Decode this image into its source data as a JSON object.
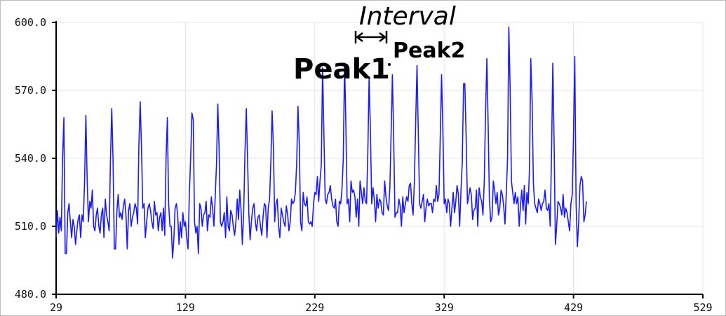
{
  "chart_data": {
    "type": "line",
    "title": "",
    "xlabel": "",
    "ylabel": "",
    "xlim": [
      29,
      529
    ],
    "ylim": [
      480,
      600
    ],
    "x_ticks": [
      "29",
      "129",
      "229",
      "329",
      "429",
      "529"
    ],
    "y_ticks": [
      "600.0",
      "570.0",
      "540.0",
      "510.0",
      "480.0"
    ],
    "grid": true,
    "series": [
      {
        "color": "#1a1aff",
        "x_start": 29,
        "x_step": 1,
        "values": [
          505,
          517,
          507,
          514,
          508,
          540,
          558,
          498,
          498,
          516,
          520,
          512,
          505,
          513,
          510,
          502,
          508,
          513,
          515,
          505,
          515,
          512,
          530,
          559,
          530,
          512,
          521,
          518,
          526,
          510,
          508,
          515,
          518,
          510,
          507,
          515,
          518,
          505,
          522,
          515,
          512,
          508,
          538,
          562,
          540,
          500,
          500,
          517,
          524,
          514,
          516,
          513,
          519,
          522,
          515,
          500,
          517,
          520,
          510,
          514,
          516,
          520,
          518,
          511,
          546,
          565,
          545,
          518,
          520,
          505,
          512,
          518,
          520,
          517,
          512,
          509,
          521,
          515,
          516,
          508,
          514,
          516,
          508,
          518,
          506,
          540,
          558,
          520,
          510,
          510,
          496,
          504,
          518,
          520,
          515,
          502,
          512,
          505,
          516,
          510,
          512,
          505,
          500,
          524,
          540,
          560,
          557,
          512,
          507,
          510,
          498,
          520,
          518,
          510,
          515,
          516,
          521,
          508,
          515,
          514,
          523,
          518,
          510,
          523,
          538,
          564,
          545,
          512,
          510,
          512,
          516,
          505,
          523,
          510,
          508,
          517,
          515,
          510,
          506,
          512,
          522,
          513,
          526,
          517,
          502,
          516,
          542,
          562,
          540,
          515,
          504,
          512,
          518,
          520,
          512,
          508,
          514,
          515,
          510,
          506,
          514,
          520,
          519,
          505,
          518,
          522,
          538,
          561,
          545,
          512,
          520,
          522,
          510,
          505,
          518,
          515,
          512,
          510,
          519,
          515,
          508,
          512,
          522,
          520,
          521,
          525,
          538,
          563,
          546,
          512,
          508,
          525,
          520,
          519,
          523,
          512,
          511,
          512,
          510,
          520,
          525,
          524,
          532,
          521,
          530,
          537,
          580,
          552,
          522,
          520,
          524,
          525,
          528,
          522,
          519,
          518,
          522,
          512,
          510,
          521,
          520,
          526,
          540,
          582,
          555,
          520,
          522,
          512,
          530,
          525,
          526,
          523,
          514,
          522,
          510,
          530,
          525,
          520,
          527,
          521,
          520,
          543,
          576,
          552,
          520,
          527,
          522,
          512,
          524,
          518,
          522,
          521,
          516,
          515,
          530,
          523,
          519,
          517,
          527,
          551,
          577,
          548,
          514,
          516,
          516,
          522,
          519,
          510,
          523,
          516,
          520,
          523,
          521,
          528,
          529,
          520,
          515,
          530,
          556,
          581,
          552,
          520,
          518,
          521,
          524,
          512,
          518,
          522,
          519,
          520,
          520,
          516,
          522,
          521,
          528,
          521,
          524,
          550,
          577,
          552,
          520,
          522,
          516,
          522,
          520,
          510,
          518,
          525,
          516,
          521,
          528,
          524,
          510,
          526,
          538,
          573,
          573,
          550,
          520,
          523,
          527,
          524,
          513,
          517,
          518,
          526,
          510,
          527,
          523,
          521,
          515,
          530,
          560,
          584,
          555,
          522,
          512,
          514,
          530,
          526,
          520,
          525,
          515,
          518,
          526,
          524,
          519,
          511,
          524,
          540,
          598,
          572,
          530,
          525,
          520,
          525,
          520,
          523,
          510,
          519,
          526,
          517,
          528,
          511,
          525,
          520,
          536,
          584,
          565,
          529,
          520,
          518,
          516,
          522,
          520,
          517,
          520,
          521,
          526,
          518,
          517,
          520,
          510,
          543,
          582,
          548,
          502,
          510,
          521,
          520,
          518,
          515,
          524,
          514,
          518,
          516,
          512,
          508,
          520,
          524,
          550,
          585,
          520,
          501,
          512,
          528,
          532,
          530,
          512,
          515,
          521
        ]
      }
    ],
    "annotations": [
      "Interval",
      "Peak1",
      "Peak2"
    ]
  },
  "colors": {
    "line": "#1a1aff",
    "grid": "#e4e4e4",
    "axis": "#000000"
  }
}
